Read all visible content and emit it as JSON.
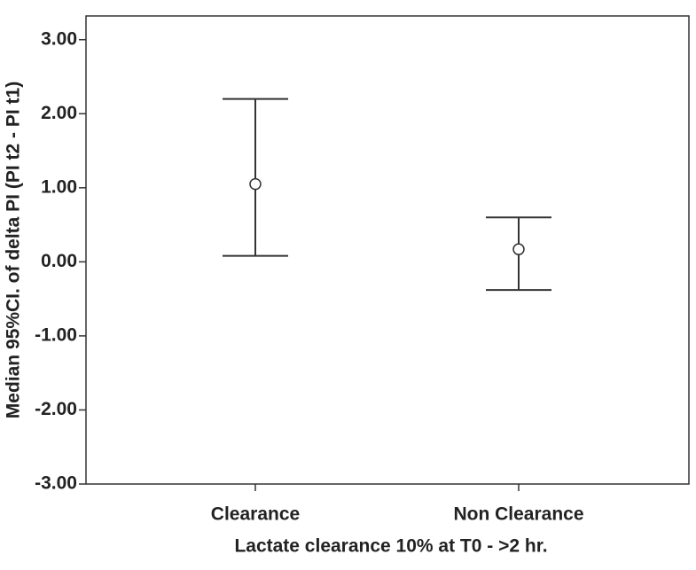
{
  "chart_data": {
    "type": "errorbar",
    "x_label": "Lactate clearance 10% at T0 - >2 hr.",
    "y_label": "Median 95%CI. of delta PI (PI t2 - PI t1)",
    "categories": [
      "Clearance",
      "Non Clearance"
    ],
    "values": [
      1.05,
      0.17
    ],
    "lower": [
      0.08,
      -0.38
    ],
    "upper": [
      2.2,
      0.6
    ],
    "color": "#333333",
    "ylim": [
      -3,
      3.32
    ],
    "yticks": [
      {
        "value": -3,
        "label": "-3.00"
      },
      {
        "value": -2,
        "label": "-2.00"
      },
      {
        "value": -1,
        "label": "-1.00"
      },
      {
        "value": 0,
        "label": "0.00"
      },
      {
        "value": 1,
        "label": "1.00"
      },
      {
        "value": 2,
        "label": "2.00"
      },
      {
        "value": 3,
        "label": "3.00"
      }
    ]
  }
}
